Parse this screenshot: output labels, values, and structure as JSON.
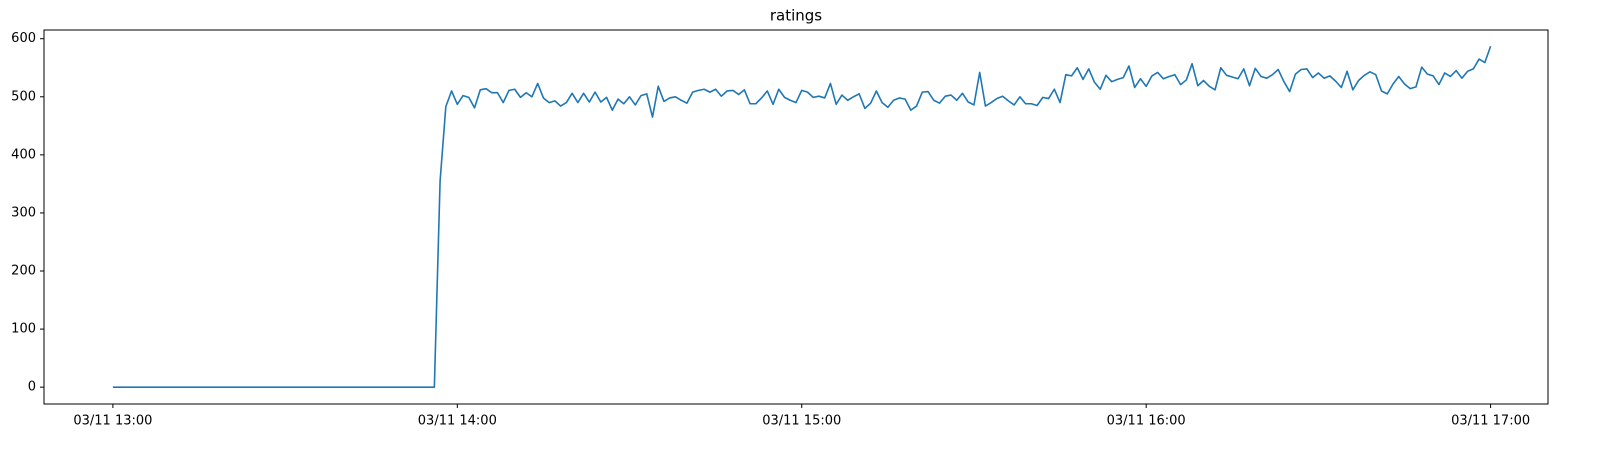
{
  "chart_data": {
    "type": "line",
    "title": "ratings",
    "x": [
      "03/11 13:00",
      "03/11 13:01",
      "03/11 13:02",
      "03/11 13:03",
      "03/11 13:04",
      "03/11 13:05",
      "03/11 13:06",
      "03/11 13:07",
      "03/11 13:08",
      "03/11 13:09",
      "03/11 13:10",
      "03/11 13:11",
      "03/11 13:12",
      "03/11 13:13",
      "03/11 13:14",
      "03/11 13:15",
      "03/11 13:16",
      "03/11 13:17",
      "03/11 13:18",
      "03/11 13:19",
      "03/11 13:20",
      "03/11 13:21",
      "03/11 13:22",
      "03/11 13:23",
      "03/11 13:24",
      "03/11 13:25",
      "03/11 13:26",
      "03/11 13:27",
      "03/11 13:28",
      "03/11 13:29",
      "03/11 13:30",
      "03/11 13:31",
      "03/11 13:32",
      "03/11 13:33",
      "03/11 13:34",
      "03/11 13:35",
      "03/11 13:36",
      "03/11 13:37",
      "03/11 13:38",
      "03/11 13:39",
      "03/11 13:40",
      "03/11 13:41",
      "03/11 13:42",
      "03/11 13:43",
      "03/11 13:44",
      "03/11 13:45",
      "03/11 13:46",
      "03/11 13:47",
      "03/11 13:48",
      "03/11 13:49",
      "03/11 13:50",
      "03/11 13:51",
      "03/11 13:52",
      "03/11 13:53",
      "03/11 13:54",
      "03/11 13:55",
      "03/11 13:56",
      "03/11 13:57",
      "03/11 13:58",
      "03/11 13:59",
      "03/11 14:00",
      "03/11 14:01",
      "03/11 14:02",
      "03/11 14:03",
      "03/11 14:04",
      "03/11 14:05",
      "03/11 14:06",
      "03/11 14:07",
      "03/11 14:08",
      "03/11 14:09",
      "03/11 14:10",
      "03/11 14:11",
      "03/11 14:12",
      "03/11 14:13",
      "03/11 14:14",
      "03/11 14:15",
      "03/11 14:16",
      "03/11 14:17",
      "03/11 14:18",
      "03/11 14:19",
      "03/11 14:20",
      "03/11 14:21",
      "03/11 14:22",
      "03/11 14:23",
      "03/11 14:24",
      "03/11 14:25",
      "03/11 14:26",
      "03/11 14:27",
      "03/11 14:28",
      "03/11 14:29",
      "03/11 14:30",
      "03/11 14:31",
      "03/11 14:32",
      "03/11 14:33",
      "03/11 14:34",
      "03/11 14:35",
      "03/11 14:36",
      "03/11 14:37",
      "03/11 14:38",
      "03/11 14:39",
      "03/11 14:40",
      "03/11 14:41",
      "03/11 14:42",
      "03/11 14:43",
      "03/11 14:44",
      "03/11 14:45",
      "03/11 14:46",
      "03/11 14:47",
      "03/11 14:48",
      "03/11 14:49",
      "03/11 14:50",
      "03/11 14:51",
      "03/11 14:52",
      "03/11 14:53",
      "03/11 14:54",
      "03/11 14:55",
      "03/11 14:56",
      "03/11 14:57",
      "03/11 14:58",
      "03/11 14:59",
      "03/11 15:00",
      "03/11 15:01",
      "03/11 15:02",
      "03/11 15:03",
      "03/11 15:04",
      "03/11 15:05",
      "03/11 15:06",
      "03/11 15:07",
      "03/11 15:08",
      "03/11 15:09",
      "03/11 15:10",
      "03/11 15:11",
      "03/11 15:12",
      "03/11 15:13",
      "03/11 15:14",
      "03/11 15:15",
      "03/11 15:16",
      "03/11 15:17",
      "03/11 15:18",
      "03/11 15:19",
      "03/11 15:20",
      "03/11 15:21",
      "03/11 15:22",
      "03/11 15:23",
      "03/11 15:24",
      "03/11 15:25",
      "03/11 15:26",
      "03/11 15:27",
      "03/11 15:28",
      "03/11 15:29",
      "03/11 15:30",
      "03/11 15:31",
      "03/11 15:32",
      "03/11 15:33",
      "03/11 15:34",
      "03/11 15:35",
      "03/11 15:36",
      "03/11 15:37",
      "03/11 15:38",
      "03/11 15:39",
      "03/11 15:40",
      "03/11 15:41",
      "03/11 15:42",
      "03/11 15:43",
      "03/11 15:44",
      "03/11 15:45",
      "03/11 15:46",
      "03/11 15:47",
      "03/11 15:48",
      "03/11 15:49",
      "03/11 15:50",
      "03/11 15:51",
      "03/11 15:52",
      "03/11 15:53",
      "03/11 15:54",
      "03/11 15:55",
      "03/11 15:56",
      "03/11 15:57",
      "03/11 15:58",
      "03/11 15:59",
      "03/11 16:00",
      "03/11 16:01",
      "03/11 16:02",
      "03/11 16:03",
      "03/11 16:04",
      "03/11 16:05",
      "03/11 16:06",
      "03/11 16:07",
      "03/11 16:08",
      "03/11 16:09",
      "03/11 16:10",
      "03/11 16:11",
      "03/11 16:12",
      "03/11 16:13",
      "03/11 16:14",
      "03/11 16:15",
      "03/11 16:16",
      "03/11 16:17",
      "03/11 16:18",
      "03/11 16:19",
      "03/11 16:20",
      "03/11 16:21",
      "03/11 16:22",
      "03/11 16:23",
      "03/11 16:24",
      "03/11 16:25",
      "03/11 16:26",
      "03/11 16:27",
      "03/11 16:28",
      "03/11 16:29",
      "03/11 16:30",
      "03/11 16:31",
      "03/11 16:32",
      "03/11 16:33",
      "03/11 16:34",
      "03/11 16:35",
      "03/11 16:36",
      "03/11 16:37",
      "03/11 16:38",
      "03/11 16:39",
      "03/11 16:40",
      "03/11 16:41",
      "03/11 16:42",
      "03/11 16:43",
      "03/11 16:44",
      "03/11 16:45",
      "03/11 16:46",
      "03/11 16:47",
      "03/11 16:48",
      "03/11 16:49",
      "03/11 16:50",
      "03/11 16:51",
      "03/11 16:52",
      "03/11 16:53",
      "03/11 16:54",
      "03/11 16:55",
      "03/11 16:56",
      "03/11 16:57",
      "03/11 16:58",
      "03/11 16:59",
      "03/11 17:00"
    ],
    "series": [
      {
        "name": "ratings",
        "color": "#1f77b4",
        "values": [
          0,
          0,
          0,
          0,
          0,
          0,
          0,
          0,
          0,
          0,
          0,
          0,
          0,
          0,
          0,
          0,
          0,
          0,
          0,
          0,
          0,
          0,
          0,
          0,
          0,
          0,
          0,
          0,
          0,
          0,
          0,
          0,
          0,
          0,
          0,
          0,
          0,
          0,
          0,
          0,
          0,
          0,
          0,
          0,
          0,
          0,
          0,
          0,
          0,
          0,
          0,
          0,
          0,
          0,
          0,
          0,
          0,
          355,
          483,
          510,
          487,
          502,
          499,
          481,
          512,
          514,
          507,
          507,
          490,
          511,
          513,
          499,
          507,
          500,
          523,
          498,
          490,
          493,
          484,
          490,
          506,
          490,
          506,
          491,
          508,
          491,
          499,
          477,
          496,
          488,
          500,
          486,
          502,
          505,
          465,
          518,
          492,
          498,
          500,
          494,
          489,
          508,
          511,
          513,
          508,
          513,
          501,
          510,
          511,
          504,
          512,
          488,
          488,
          498,
          510,
          487,
          513,
          499,
          494,
          490,
          511,
          508,
          499,
          501,
          498,
          523,
          487,
          503,
          494,
          500,
          505,
          480,
          489,
          510,
          490,
          482,
          494,
          498,
          496,
          477,
          484,
          508,
          509,
          494,
          489,
          501,
          503,
          494,
          506,
          491,
          486,
          542,
          484,
          490,
          497,
          501,
          493,
          486,
          500,
          488,
          488,
          485,
          499,
          497,
          513,
          490,
          538,
          536,
          550,
          530,
          548,
          525,
          513,
          537,
          526,
          530,
          533,
          553,
          516,
          531,
          518,
          536,
          542,
          531,
          535,
          538,
          521,
          529,
          557,
          519,
          528,
          518,
          512,
          550,
          537,
          534,
          531,
          548,
          519,
          549,
          535,
          532,
          538,
          547,
          526,
          509,
          539,
          547,
          548,
          533,
          541,
          532,
          536,
          527,
          516,
          544,
          512,
          528,
          537,
          543,
          538,
          510,
          505,
          522,
          535,
          522,
          514,
          517,
          551,
          539,
          536,
          521,
          541,
          535,
          545,
          532,
          544,
          548,
          565,
          559,
          587
        ]
      }
    ],
    "xlim": [
      "03/11 12:48",
      "03/11 17:10"
    ],
    "xticks": [
      "03/11 13:00",
      "03/11 14:00",
      "03/11 15:00",
      "03/11 16:00",
      "03/11 17:00"
    ],
    "ylim": [
      -29,
      615
    ],
    "yticks": [
      0,
      100,
      200,
      300,
      400,
      500,
      600
    ],
    "grid": false
  }
}
